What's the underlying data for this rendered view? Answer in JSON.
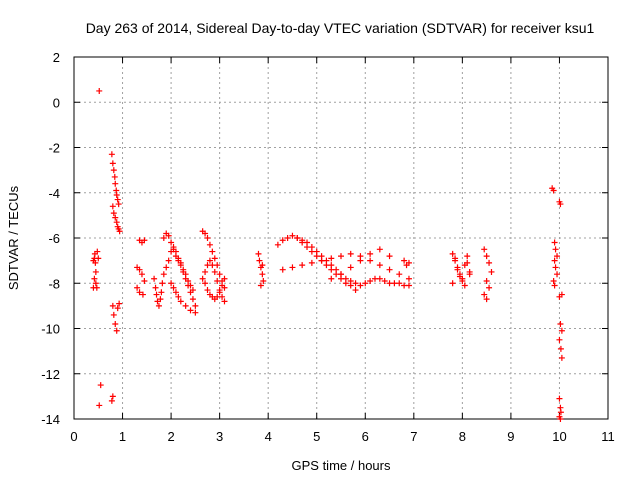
{
  "chart_data": {
    "type": "scatter",
    "title": "Day 263 of 2014, Sidereal Day-to-day VTEC variation (SDTVAR) for receiver ksu1",
    "xlabel": "GPS time / hours",
    "ylabel": "SDTVAR / TECUs",
    "xlim": [
      0,
      11
    ],
    "ylim": [
      -14,
      2
    ],
    "xticks": [
      0,
      1,
      2,
      3,
      4,
      5,
      6,
      7,
      8,
      9,
      10,
      11
    ],
    "yticks": [
      2,
      0,
      -2,
      -4,
      -6,
      -8,
      -10,
      -12,
      -14
    ],
    "grid": true,
    "marker": "plus",
    "color": "#ff0000",
    "series": [
      {
        "name": "ksu1",
        "x": [
          0.4,
          0.4,
          0.42,
          0.42,
          0.43,
          0.44,
          0.45,
          0.45,
          0.47,
          0.48,
          0.5,
          0.52,
          0.55,
          0.52,
          0.78,
          0.8,
          0.82,
          0.84,
          0.85,
          0.87,
          0.88,
          0.9,
          0.92,
          0.8,
          0.82,
          0.85,
          0.88,
          0.9,
          0.92,
          0.94,
          0.8,
          0.82,
          0.85,
          0.88,
          0.9,
          0.93,
          0.78,
          0.8,
          1.35,
          1.4,
          1.45,
          1.3,
          1.35,
          1.4,
          1.45,
          1.3,
          1.35,
          1.42,
          1.65,
          1.68,
          1.7,
          1.72,
          1.75,
          1.78,
          1.8,
          1.82,
          1.85,
          1.9,
          1.95,
          2.0,
          2.05,
          2.1,
          2.15,
          2.2,
          2.25,
          2.3,
          2.35,
          2.4,
          2.45,
          2.5,
          2.0,
          2.05,
          2.1,
          2.15,
          2.2,
          2.3,
          2.4,
          2.5,
          1.85,
          1.9,
          1.95,
          2.0,
          2.05,
          2.1,
          2.15,
          2.2,
          2.25,
          2.3,
          2.35,
          2.4,
          2.45,
          2.65,
          2.7,
          2.75,
          2.8,
          2.85,
          2.9,
          2.95,
          3.0,
          3.05,
          3.1,
          2.65,
          2.7,
          2.75,
          2.8,
          2.85,
          2.9,
          2.95,
          3.0,
          3.05,
          3.1,
          2.7,
          2.75,
          2.8,
          2.85,
          2.9,
          2.95,
          3.0,
          3.05,
          3.1,
          3.8,
          3.82,
          3.85,
          3.88,
          3.9,
          3.85,
          3.88,
          4.2,
          4.3,
          4.4,
          4.5,
          4.6,
          4.7,
          4.8,
          4.9,
          5.0,
          5.1,
          5.2,
          5.3,
          5.4,
          5.5,
          5.6,
          5.7,
          5.8,
          4.6,
          4.7,
          4.8,
          4.9,
          5.0,
          5.1,
          5.2,
          5.3,
          5.4,
          5.5,
          5.6,
          5.7,
          5.8,
          5.9,
          6.0,
          6.1,
          6.2,
          6.3,
          6.4,
          6.5,
          6.6,
          6.7,
          6.8,
          6.9,
          4.3,
          4.5,
          4.7,
          4.9,
          5.1,
          5.3,
          5.5,
          5.7,
          5.9,
          6.1,
          6.3,
          6.5,
          6.7,
          6.9,
          5.3,
          5.5,
          5.7,
          5.9,
          6.1,
          6.3,
          6.5,
          6.8,
          6.85,
          6.9,
          7.8,
          7.85,
          7.9,
          7.95,
          8.0,
          8.05,
          8.1,
          8.15,
          7.8,
          7.9,
          8.0,
          8.1,
          8.15,
          7.85,
          7.95,
          8.05,
          8.45,
          8.5,
          8.55,
          8.6,
          8.5,
          8.55,
          8.45,
          8.5,
          9.85,
          9.88,
          9.9,
          9.92,
          9.95,
          9.9,
          9.92,
          9.95,
          9.88,
          9.9,
          10.0,
          10.02,
          10.05,
          10.0,
          10.02,
          10.05,
          10.0,
          10.03,
          10.05,
          10.0,
          10.02,
          10.0,
          10.02,
          10.03
        ],
        "y": [
          -7.0,
          -8.2,
          -6.9,
          -7.8,
          -6.7,
          -7.1,
          -7.5,
          -8.0,
          -8.2,
          -6.6,
          -6.9,
          0.5,
          -12.5,
          -13.4,
          -2.3,
          -2.7,
          -3.0,
          -3.3,
          -3.6,
          -3.9,
          -4.1,
          -4.3,
          -4.5,
          -4.6,
          -4.9,
          -5.1,
          -5.3,
          -5.5,
          -5.6,
          -5.7,
          -9.0,
          -9.4,
          -9.8,
          -10.1,
          -9.1,
          -8.9,
          -13.2,
          -13.0,
          -6.1,
          -6.2,
          -6.1,
          -7.3,
          -7.4,
          -7.6,
          -7.9,
          -8.2,
          -8.4,
          -8.5,
          -7.8,
          -8.2,
          -8.5,
          -8.8,
          -9.0,
          -8.7,
          -8.4,
          -8.0,
          -7.6,
          -7.3,
          -7.0,
          -6.6,
          -6.4,
          -6.6,
          -6.9,
          -7.2,
          -7.5,
          -7.8,
          -8.1,
          -8.4,
          -8.7,
          -9.0,
          -8.0,
          -8.2,
          -8.4,
          -8.6,
          -8.8,
          -9.0,
          -9.2,
          -9.3,
          -6.0,
          -5.8,
          -5.9,
          -6.2,
          -6.5,
          -6.8,
          -7.0,
          -7.1,
          -7.4,
          -7.6,
          -7.9,
          -8.1,
          -8.3,
          -5.7,
          -5.8,
          -6.0,
          -6.3,
          -6.6,
          -6.9,
          -7.2,
          -7.6,
          -7.9,
          -8.2,
          -7.8,
          -8.0,
          -8.3,
          -8.5,
          -8.6,
          -8.7,
          -8.6,
          -8.4,
          -8.1,
          -7.8,
          -7.5,
          -7.2,
          -7.0,
          -7.2,
          -7.5,
          -7.9,
          -8.3,
          -8.6,
          -8.8,
          -6.7,
          -7.0,
          -7.3,
          -7.6,
          -7.9,
          -8.1,
          -7.2,
          -6.3,
          -6.1,
          -6.0,
          -5.9,
          -6.0,
          -6.2,
          -6.4,
          -6.6,
          -6.8,
          -7.0,
          -7.2,
          -7.4,
          -7.6,
          -7.8,
          -8.0,
          -8.1,
          -8.3,
          -6.0,
          -6.1,
          -6.2,
          -6.4,
          -6.6,
          -6.8,
          -7.0,
          -7.2,
          -7.4,
          -7.6,
          -7.8,
          -7.9,
          -8.0,
          -8.1,
          -8.0,
          -7.9,
          -7.8,
          -7.8,
          -7.9,
          -8.0,
          -8.0,
          -8.0,
          -8.1,
          -8.1,
          -7.4,
          -7.3,
          -7.2,
          -7.1,
          -7.0,
          -6.9,
          -6.8,
          -6.7,
          -6.8,
          -7.0,
          -7.2,
          -7.4,
          -7.6,
          -7.8,
          -7.8,
          -7.6,
          -7.3,
          -7.0,
          -6.7,
          -6.5,
          -6.8,
          -7.0,
          -7.2,
          -7.1,
          -6.7,
          -7.0,
          -7.3,
          -7.6,
          -7.9,
          -7.2,
          -6.8,
          -7.5,
          -8.0,
          -7.4,
          -7.8,
          -7.1,
          -7.6,
          -6.9,
          -7.7,
          -8.1,
          -6.5,
          -6.8,
          -7.1,
          -7.5,
          -7.9,
          -8.2,
          -8.5,
          -8.7,
          -3.8,
          -3.9,
          -6.2,
          -6.5,
          -6.8,
          -7.0,
          -7.3,
          -7.6,
          -7.9,
          -8.1,
          -4.4,
          -4.5,
          -8.5,
          -8.6,
          -9.8,
          -10.1,
          -10.5,
          -10.9,
          -11.3,
          -13.1,
          -13.5,
          -13.9,
          -14.0,
          -13.7
        ]
      }
    ]
  }
}
